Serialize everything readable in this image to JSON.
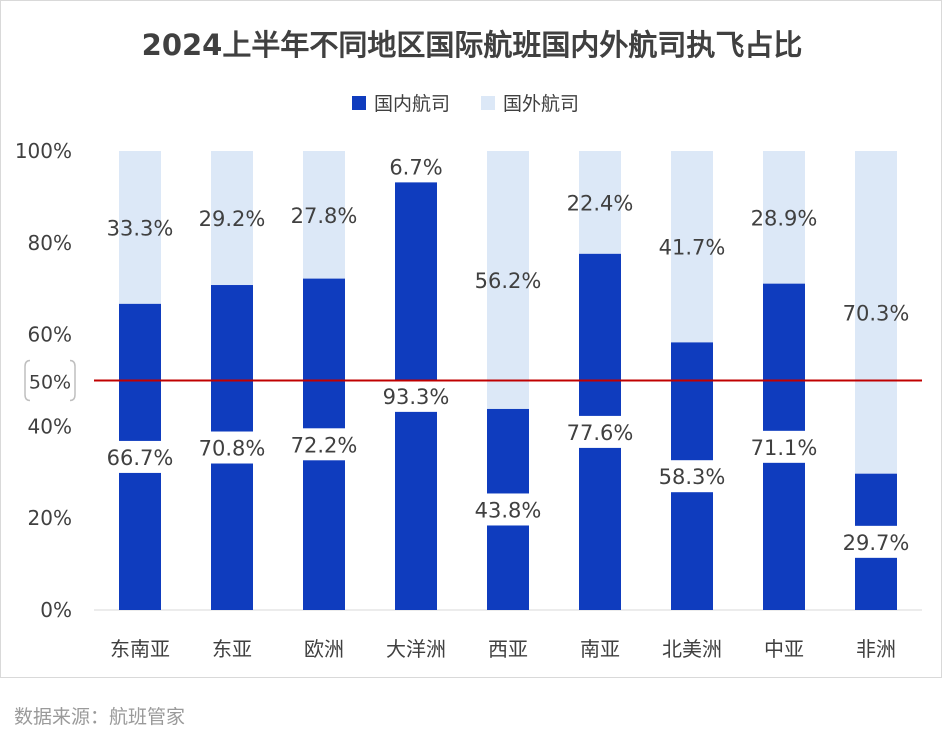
{
  "chart_data": {
    "type": "bar",
    "stacked": true,
    "title": "2024上半年不同地区国际航班国内外航司执飞占比",
    "categories": [
      "东南亚",
      "东亚",
      "欧洲",
      "大洋洲",
      "西亚",
      "南亚",
      "北美洲",
      "中亚",
      "非洲"
    ],
    "series": [
      {
        "name": "国内航司",
        "color": "#0f3cbe",
        "values": [
          66.7,
          70.8,
          72.2,
          93.3,
          43.8,
          77.6,
          58.3,
          71.1,
          29.7
        ],
        "labels": [
          "66.7%",
          "70.8%",
          "72.2%",
          "93.3%",
          "43.8%",
          "77.6%",
          "58.3%",
          "71.1%",
          "29.7%"
        ]
      },
      {
        "name": "国外航司",
        "color": "#dce8f7",
        "values": [
          33.3,
          29.2,
          27.8,
          6.7,
          56.2,
          22.4,
          41.7,
          28.9,
          70.3
        ],
        "labels": [
          "33.3%",
          "29.2%",
          "27.8%",
          "6.7%",
          "56.2%",
          "22.4%",
          "41.7%",
          "28.9%",
          "70.3%"
        ]
      }
    ],
    "ylim": [
      0,
      100
    ],
    "yticks": [
      "0%",
      "20%",
      "40%",
      "60%",
      "80%",
      "100%"
    ],
    "reference_line": {
      "value": 50,
      "label": "50%",
      "color": "#c00000"
    },
    "legend": "top",
    "xlabel": "",
    "ylabel": ""
  },
  "source": "数据来源：航班管家"
}
